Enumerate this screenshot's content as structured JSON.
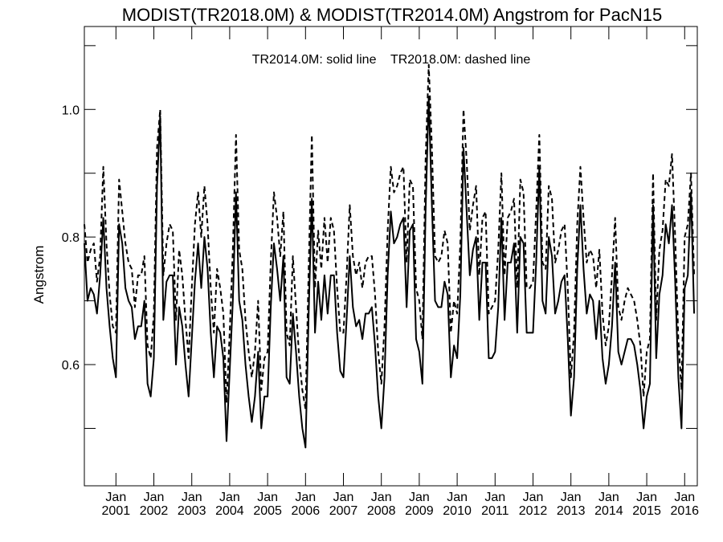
{
  "chart_data": {
    "type": "line",
    "title": "MODIST(TR2018.0M) & MODIST(TR2014.0M)  Angstrom for PacN15",
    "annotation": "TR2014.0M: solid line    TR2018.0M: dashed line",
    "ylabel": "Angstrom",
    "xlabel": "",
    "ylim": [
      0.41,
      1.13
    ],
    "x_range": [
      "2000-03",
      "2016-05"
    ],
    "y_ticks": [
      0.6,
      0.8,
      1.0
    ],
    "y_tick_labels": [
      "0.6",
      "0.8",
      "1.0"
    ],
    "y_minor_ticks": [
      0.5,
      0.6,
      0.7,
      0.8,
      0.9,
      1.0,
      1.1
    ],
    "x_ticks": [
      {
        "date": "2001-01",
        "month": "Jan",
        "year": "2001"
      },
      {
        "date": "2002-01",
        "month": "Jan",
        "year": "2002"
      },
      {
        "date": "2003-01",
        "month": "Jan",
        "year": "2003"
      },
      {
        "date": "2004-01",
        "month": "Jan",
        "year": "2004"
      },
      {
        "date": "2005-01",
        "month": "Jan",
        "year": "2005"
      },
      {
        "date": "2006-01",
        "month": "Jan",
        "year": "2006"
      },
      {
        "date": "2007-01",
        "month": "Jan",
        "year": "2007"
      },
      {
        "date": "2008-01",
        "month": "Jan",
        "year": "2008"
      },
      {
        "date": "2009-01",
        "month": "Jan",
        "year": "2009"
      },
      {
        "date": "2010-01",
        "month": "Jan",
        "year": "2010"
      },
      {
        "date": "2011-01",
        "month": "Jan",
        "year": "2011"
      },
      {
        "date": "2012-01",
        "month": "Jan",
        "year": "2012"
      },
      {
        "date": "2013-01",
        "month": "Jan",
        "year": "2013"
      },
      {
        "date": "2014-01",
        "month": "Jan",
        "year": "2014"
      },
      {
        "date": "2015-01",
        "month": "Jan",
        "year": "2015"
      },
      {
        "date": "2016-01",
        "month": "Jan",
        "year": "2016"
      }
    ],
    "grid": false,
    "series": [
      {
        "name": "TR2014.0M",
        "style": "solid",
        "color": "#000000",
        "x_start": "2000-03",
        "values": [
          0.79,
          0.7,
          0.72,
          0.71,
          0.68,
          0.74,
          0.83,
          0.72,
          0.66,
          0.61,
          0.58,
          0.82,
          0.79,
          0.72,
          0.7,
          0.69,
          0.64,
          0.66,
          0.66,
          0.7,
          0.57,
          0.55,
          0.61,
          0.88,
          0.99,
          0.67,
          0.73,
          0.74,
          0.74,
          0.6,
          0.69,
          0.66,
          0.6,
          0.55,
          0.64,
          0.73,
          0.79,
          0.72,
          0.8,
          0.75,
          0.65,
          0.58,
          0.66,
          0.65,
          0.61,
          0.48,
          0.59,
          0.7,
          0.87,
          0.7,
          0.67,
          0.6,
          0.55,
          0.51,
          0.55,
          0.62,
          0.5,
          0.55,
          0.55,
          0.69,
          0.79,
          0.75,
          0.7,
          0.77,
          0.58,
          0.57,
          0.68,
          0.62,
          0.55,
          0.5,
          0.47,
          0.68,
          0.86,
          0.65,
          0.73,
          0.67,
          0.74,
          0.68,
          0.74,
          0.74,
          0.65,
          0.59,
          0.58,
          0.67,
          0.77,
          0.69,
          0.66,
          0.67,
          0.64,
          0.68,
          0.68,
          0.69,
          0.63,
          0.55,
          0.5,
          0.58,
          0.74,
          0.84,
          0.79,
          0.8,
          0.82,
          0.83,
          0.69,
          0.81,
          0.82,
          0.64,
          0.62,
          0.57,
          0.84,
          1.02,
          0.85,
          0.7,
          0.69,
          0.69,
          0.73,
          0.71,
          0.58,
          0.63,
          0.61,
          0.71,
          0.94,
          0.84,
          0.74,
          0.78,
          0.8,
          0.67,
          0.76,
          0.76,
          0.61,
          0.61,
          0.62,
          0.69,
          0.83,
          0.67,
          0.76,
          0.76,
          0.79,
          0.65,
          0.8,
          0.79,
          0.65,
          0.65,
          0.65,
          0.76,
          0.91,
          0.7,
          0.68,
          0.8,
          0.77,
          0.68,
          0.7,
          0.73,
          0.74,
          0.64,
          0.52,
          0.58,
          0.75,
          0.85,
          0.75,
          0.68,
          0.71,
          0.7,
          0.64,
          0.7,
          0.61,
          0.57,
          0.6,
          0.66,
          0.76,
          0.62,
          0.6,
          0.62,
          0.64,
          0.64,
          0.63,
          0.6,
          0.56,
          0.5,
          0.55,
          0.57,
          0.85,
          0.61,
          0.71,
          0.74,
          0.82,
          0.79,
          0.85,
          0.73,
          0.58,
          0.5,
          0.72,
          0.74,
          0.87,
          0.68
        ]
      },
      {
        "name": "TR2018.0M",
        "style": "dashed",
        "color": "#000000",
        "x_start": "2000-03",
        "values": [
          0.82,
          0.76,
          0.78,
          0.79,
          0.73,
          0.77,
          0.91,
          0.79,
          0.71,
          0.66,
          0.65,
          0.89,
          0.84,
          0.79,
          0.76,
          0.75,
          0.69,
          0.74,
          0.74,
          0.77,
          0.63,
          0.61,
          0.68,
          0.94,
          1.0,
          0.74,
          0.79,
          0.82,
          0.81,
          0.67,
          0.78,
          0.74,
          0.67,
          0.61,
          0.72,
          0.82,
          0.87,
          0.8,
          0.88,
          0.82,
          0.72,
          0.65,
          0.75,
          0.72,
          0.68,
          0.54,
          0.65,
          0.78,
          0.96,
          0.78,
          0.75,
          0.67,
          0.62,
          0.58,
          0.62,
          0.7,
          0.56,
          0.61,
          0.62,
          0.76,
          0.87,
          0.83,
          0.77,
          0.84,
          0.65,
          0.63,
          0.77,
          0.69,
          0.61,
          0.56,
          0.53,
          0.75,
          0.96,
          0.72,
          0.81,
          0.75,
          0.83,
          0.76,
          0.83,
          0.81,
          0.72,
          0.65,
          0.65,
          0.74,
          0.85,
          0.77,
          0.74,
          0.76,
          0.72,
          0.76,
          0.77,
          0.77,
          0.71,
          0.62,
          0.57,
          0.66,
          0.81,
          0.91,
          0.87,
          0.88,
          0.9,
          0.91,
          0.76,
          0.89,
          0.88,
          0.72,
          0.7,
          0.64,
          0.92,
          1.07,
          0.94,
          0.77,
          0.76,
          0.77,
          0.81,
          0.79,
          0.65,
          0.7,
          0.68,
          0.79,
          1.0,
          0.92,
          0.81,
          0.85,
          0.88,
          0.74,
          0.83,
          0.84,
          0.68,
          0.69,
          0.7,
          0.78,
          0.9,
          0.74,
          0.83,
          0.84,
          0.86,
          0.72,
          0.89,
          0.87,
          0.72,
          0.72,
          0.73,
          0.84,
          0.96,
          0.76,
          0.75,
          0.88,
          0.86,
          0.76,
          0.78,
          0.81,
          0.82,
          0.72,
          0.58,
          0.65,
          0.82,
          0.91,
          0.83,
          0.76,
          0.78,
          0.77,
          0.72,
          0.78,
          0.68,
          0.63,
          0.66,
          0.74,
          0.83,
          0.69,
          0.67,
          0.7,
          0.72,
          0.71,
          0.7,
          0.67,
          0.63,
          0.55,
          0.62,
          0.64,
          0.9,
          0.67,
          0.78,
          0.81,
          0.89,
          0.88,
          0.93,
          0.8,
          0.64,
          0.56,
          0.8,
          0.82,
          0.9,
          0.74
        ]
      }
    ]
  }
}
